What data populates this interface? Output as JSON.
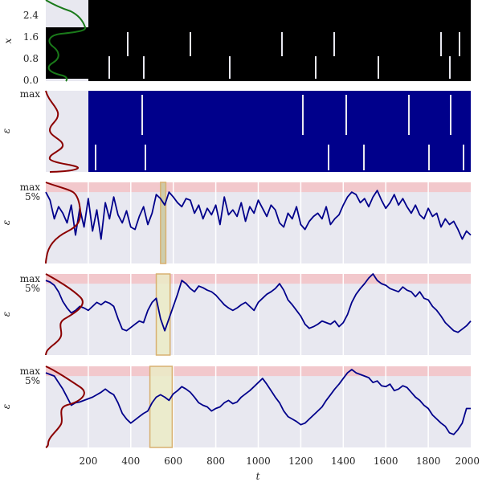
{
  "figure": {
    "xlabel": "t",
    "x_ticks": [
      "200",
      "400",
      "600",
      "800",
      "1000",
      "1200",
      "1400",
      "1600",
      "1800",
      "2000"
    ]
  },
  "chart_data": [
    {
      "panel": 1,
      "type": "line",
      "ylabel": "x",
      "xlim": [
        0,
        2000
      ],
      "ylim": [
        0,
        3.0
      ],
      "y_ticks": [
        "0.0",
        "0.8",
        "1.6",
        "2.4"
      ],
      "series": [
        {
          "color": "#000000",
          "style": "dense rapidly switching trace between 0.0 and above 2.4"
        }
      ],
      "density_curve": {
        "color": "#1a7a1a",
        "y_peaks": [
          0.25,
          1.05,
          2.0,
          2.85
        ]
      },
      "background": "#e8e8f0"
    },
    {
      "panel": 2,
      "type": "line",
      "ylabel": "ε",
      "y_ticks": [
        "max"
      ],
      "series": [
        {
          "color": "#00008b",
          "style": "dense rapidly switching trace spanning the full range"
        }
      ],
      "density_curve": {
        "color": "#8b0000"
      },
      "background": "#e8e8f0"
    },
    {
      "panel": 3,
      "type": "line",
      "ylabel": "ε",
      "y_ticks": [
        "max",
        "5%"
      ],
      "xlim": [
        0,
        2000
      ],
      "ylim": [
        0,
        1.0
      ],
      "threshold_band": {
        "from": 0.88,
        "to": 1.0,
        "color": "#f2c8cc"
      },
      "highlight_window": {
        "x": [
          540,
          565
        ],
        "color": "#c8c8a0"
      },
      "density_curve": {
        "color": "#8b0000"
      },
      "series": [
        {
          "color": "#00008b",
          "x_step": 20,
          "values": [
            0.88,
            0.78,
            0.55,
            0.7,
            0.62,
            0.5,
            0.72,
            0.35,
            0.68,
            0.45,
            0.8,
            0.4,
            0.66,
            0.3,
            0.75,
            0.55,
            0.82,
            0.6,
            0.5,
            0.65,
            0.45,
            0.42,
            0.58,
            0.7,
            0.48,
            0.62,
            0.85,
            0.8,
            0.72,
            0.88,
            0.82,
            0.75,
            0.7,
            0.8,
            0.78,
            0.62,
            0.72,
            0.55,
            0.68,
            0.6,
            0.72,
            0.48,
            0.82,
            0.6,
            0.66,
            0.58,
            0.75,
            0.52,
            0.7,
            0.62,
            0.78,
            0.68,
            0.58,
            0.72,
            0.66,
            0.5,
            0.45,
            0.62,
            0.55,
            0.7,
            0.48,
            0.42,
            0.52,
            0.58,
            0.62,
            0.55,
            0.7,
            0.48,
            0.55,
            0.6,
            0.72,
            0.82,
            0.88,
            0.85,
            0.75,
            0.8,
            0.7,
            0.82,
            0.9,
            0.78,
            0.68,
            0.75,
            0.85,
            0.72,
            0.8,
            0.7,
            0.62,
            0.72,
            0.6,
            0.55,
            0.68,
            0.58,
            0.62,
            0.45,
            0.55,
            0.48,
            0.52,
            0.42,
            0.3,
            0.4,
            0.35
          ]
        }
      ]
    },
    {
      "panel": 4,
      "type": "line",
      "ylabel": "ε",
      "y_ticks": [
        "max",
        "5%"
      ],
      "xlim": [
        0,
        2000
      ],
      "ylim": [
        0,
        1.0
      ],
      "threshold_band": {
        "from": 0.88,
        "to": 1.0,
        "color": "#f2c8cc"
      },
      "highlight_window": {
        "x": [
          520,
          585
        ],
        "color": "#ebebc6"
      },
      "density_curve": {
        "color": "#8b0000"
      },
      "series": [
        {
          "color": "#00008b",
          "x_step": 20,
          "values": [
            0.92,
            0.9,
            0.86,
            0.78,
            0.66,
            0.58,
            0.52,
            0.55,
            0.6,
            0.58,
            0.55,
            0.6,
            0.65,
            0.62,
            0.66,
            0.64,
            0.6,
            0.45,
            0.32,
            0.3,
            0.34,
            0.38,
            0.42,
            0.4,
            0.55,
            0.65,
            0.7,
            0.45,
            0.3,
            0.45,
            0.6,
            0.75,
            0.92,
            0.88,
            0.82,
            0.78,
            0.85,
            0.83,
            0.8,
            0.78,
            0.74,
            0.68,
            0.62,
            0.58,
            0.55,
            0.58,
            0.62,
            0.65,
            0.6,
            0.55,
            0.65,
            0.7,
            0.75,
            0.78,
            0.82,
            0.88,
            0.8,
            0.68,
            0.62,
            0.55,
            0.48,
            0.38,
            0.33,
            0.35,
            0.38,
            0.42,
            0.4,
            0.38,
            0.42,
            0.35,
            0.4,
            0.5,
            0.65,
            0.75,
            0.82,
            0.88,
            0.95,
            1.0,
            0.92,
            0.88,
            0.86,
            0.82,
            0.8,
            0.78,
            0.84,
            0.8,
            0.78,
            0.72,
            0.78,
            0.7,
            0.68,
            0.6,
            0.55,
            0.48,
            0.4,
            0.35,
            0.3,
            0.28,
            0.32,
            0.36,
            0.42
          ]
        }
      ]
    },
    {
      "panel": 5,
      "type": "line",
      "ylabel": "ε",
      "y_ticks": [
        "max",
        "5%"
      ],
      "xlim": [
        0,
        2000
      ],
      "ylim": [
        0,
        1.0
      ],
      "threshold_band": {
        "from": 0.88,
        "to": 1.0,
        "color": "#f2c8cc"
      },
      "highlight_window": {
        "x": [
          490,
          595
        ],
        "color": "#ebebc6"
      },
      "density_curve": {
        "color": "#8b0000"
      },
      "series": [
        {
          "color": "#00008b",
          "x_step": 20,
          "values": [
            0.92,
            0.9,
            0.88,
            0.8,
            0.72,
            0.62,
            0.52,
            0.55,
            0.56,
            0.58,
            0.6,
            0.62,
            0.65,
            0.68,
            0.72,
            0.68,
            0.65,
            0.55,
            0.42,
            0.35,
            0.3,
            0.34,
            0.38,
            0.42,
            0.45,
            0.55,
            0.62,
            0.65,
            0.62,
            0.58,
            0.66,
            0.7,
            0.75,
            0.72,
            0.68,
            0.62,
            0.55,
            0.52,
            0.5,
            0.45,
            0.48,
            0.5,
            0.55,
            0.58,
            0.54,
            0.56,
            0.62,
            0.66,
            0.7,
            0.75,
            0.8,
            0.85,
            0.78,
            0.7,
            0.62,
            0.55,
            0.45,
            0.38,
            0.35,
            0.32,
            0.28,
            0.3,
            0.35,
            0.4,
            0.45,
            0.5,
            0.58,
            0.65,
            0.72,
            0.78,
            0.85,
            0.92,
            0.96,
            0.92,
            0.9,
            0.88,
            0.86,
            0.8,
            0.82,
            0.76,
            0.75,
            0.78,
            0.7,
            0.72,
            0.76,
            0.74,
            0.68,
            0.62,
            0.58,
            0.52,
            0.48,
            0.4,
            0.35,
            0.3,
            0.26,
            0.18,
            0.16,
            0.22,
            0.3,
            0.48,
            0.48
          ]
        }
      ]
    }
  ]
}
